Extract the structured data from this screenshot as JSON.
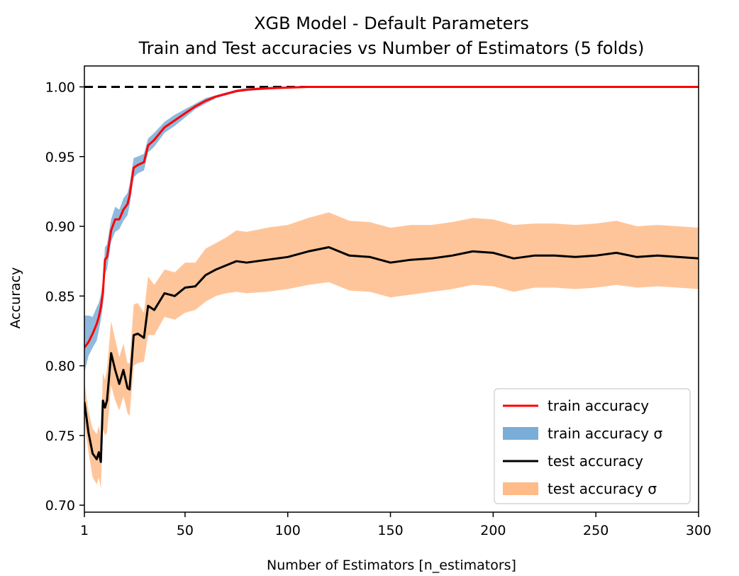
{
  "chart_data": {
    "type": "line",
    "title": [
      "XGB Model - Default Parameters",
      "Train and Test accuracies vs Number of Estimators (5 folds)"
    ],
    "xlabel": "Number of Estimators [n_estimators]",
    "ylabel": "Accuracy",
    "xlim": [
      1,
      300
    ],
    "ylim": [
      0.695,
      1.015
    ],
    "xticks": [
      1,
      50,
      100,
      150,
      200,
      250,
      300
    ],
    "yticks": [
      0.7,
      0.75,
      0.8,
      0.85,
      0.9,
      0.95,
      1.0
    ],
    "ytick_labels": [
      "0.70",
      "0.75",
      "0.80",
      "0.85",
      "0.90",
      "0.95",
      "1.00"
    ],
    "grid": false,
    "legend_position": "lower-right",
    "reference_line": {
      "y": 1.0,
      "style": "dashed",
      "color": "#000000"
    },
    "x": [
      1,
      3,
      5,
      7,
      8,
      9,
      10,
      11,
      12,
      14,
      16,
      18,
      20,
      22,
      23,
      25,
      27,
      30,
      32,
      35,
      40,
      45,
      50,
      55,
      60,
      65,
      70,
      75,
      80,
      90,
      100,
      110,
      120,
      130,
      140,
      150,
      160,
      170,
      180,
      190,
      200,
      210,
      220,
      230,
      240,
      250,
      260,
      270,
      280,
      290,
      300
    ],
    "series": [
      {
        "name": "train accuracy",
        "color": "#ff0000",
        "values": [
          0.813,
          0.817,
          0.823,
          0.83,
          0.835,
          0.842,
          0.852,
          0.876,
          0.878,
          0.897,
          0.905,
          0.905,
          0.912,
          0.916,
          0.922,
          0.942,
          0.944,
          0.946,
          0.958,
          0.962,
          0.971,
          0.976,
          0.981,
          0.986,
          0.99,
          0.993,
          0.995,
          0.997,
          0.998,
          0.999,
          0.9995,
          1.0,
          1.0,
          1.0,
          1.0,
          1.0,
          1.0,
          1.0,
          1.0,
          1.0,
          1.0,
          1.0,
          1.0,
          1.0,
          1.0,
          1.0,
          1.0,
          1.0,
          1.0,
          1.0,
          1.0
        ]
      },
      {
        "name": "train accuracy σ",
        "type": "band",
        "color": "#7aaed8",
        "lower": [
          0.795,
          0.807,
          0.813,
          0.818,
          0.825,
          0.833,
          0.843,
          0.866,
          0.869,
          0.889,
          0.896,
          0.898,
          0.904,
          0.908,
          0.915,
          0.935,
          0.938,
          0.94,
          0.953,
          0.957,
          0.967,
          0.972,
          0.978,
          0.984,
          0.988,
          0.992,
          0.994,
          0.996,
          0.997,
          0.998,
          0.999,
          0.9995,
          1.0,
          1.0,
          1.0,
          1.0,
          1.0,
          1.0,
          1.0,
          1.0,
          1.0,
          1.0,
          1.0,
          1.0,
          1.0,
          1.0,
          1.0,
          1.0,
          1.0,
          1.0,
          1.0
        ],
        "upper": [
          0.836,
          0.836,
          0.835,
          0.842,
          0.845,
          0.851,
          0.861,
          0.885,
          0.887,
          0.905,
          0.914,
          0.912,
          0.92,
          0.924,
          0.93,
          0.949,
          0.95,
          0.952,
          0.963,
          0.967,
          0.975,
          0.98,
          0.984,
          0.988,
          0.992,
          0.994,
          0.996,
          0.998,
          0.999,
          1.0,
          1.0,
          1.0,
          1.0,
          1.0,
          1.0,
          1.0,
          1.0,
          1.0,
          1.0,
          1.0,
          1.0,
          1.0,
          1.0,
          1.0,
          1.0,
          1.0,
          1.0,
          1.0,
          1.0,
          1.0,
          1.0
        ]
      },
      {
        "name": "test accuracy",
        "color": "#000000",
        "values": [
          0.774,
          0.752,
          0.737,
          0.733,
          0.738,
          0.731,
          0.775,
          0.77,
          0.775,
          0.809,
          0.797,
          0.787,
          0.797,
          0.784,
          0.783,
          0.822,
          0.823,
          0.82,
          0.843,
          0.84,
          0.852,
          0.85,
          0.856,
          0.857,
          0.865,
          0.869,
          0.872,
          0.875,
          0.874,
          0.876,
          0.878,
          0.882,
          0.885,
          0.879,
          0.878,
          0.874,
          0.876,
          0.877,
          0.879,
          0.882,
          0.881,
          0.877,
          0.879,
          0.879,
          0.878,
          0.879,
          0.881,
          0.878,
          0.879,
          0.878,
          0.877
        ]
      },
      {
        "name": "test accuracy σ",
        "type": "band",
        "color": "#ffbb88",
        "lower": [
          0.76,
          0.738,
          0.72,
          0.715,
          0.72,
          0.712,
          0.755,
          0.75,
          0.752,
          0.786,
          0.775,
          0.768,
          0.778,
          0.766,
          0.764,
          0.8,
          0.802,
          0.803,
          0.822,
          0.822,
          0.835,
          0.833,
          0.838,
          0.84,
          0.846,
          0.85,
          0.852,
          0.853,
          0.852,
          0.853,
          0.855,
          0.858,
          0.86,
          0.854,
          0.853,
          0.849,
          0.851,
          0.853,
          0.855,
          0.858,
          0.857,
          0.853,
          0.856,
          0.856,
          0.855,
          0.856,
          0.858,
          0.856,
          0.857,
          0.856,
          0.855
        ],
        "upper": [
          0.788,
          0.767,
          0.755,
          0.751,
          0.757,
          0.75,
          0.795,
          0.79,
          0.798,
          0.832,
          0.819,
          0.806,
          0.816,
          0.802,
          0.802,
          0.844,
          0.845,
          0.838,
          0.864,
          0.858,
          0.869,
          0.867,
          0.874,
          0.874,
          0.884,
          0.888,
          0.892,
          0.897,
          0.896,
          0.899,
          0.901,
          0.906,
          0.91,
          0.904,
          0.903,
          0.899,
          0.901,
          0.901,
          0.903,
          0.906,
          0.905,
          0.901,
          0.902,
          0.902,
          0.901,
          0.902,
          0.904,
          0.9,
          0.901,
          0.9,
          0.899
        ]
      }
    ],
    "legend": [
      {
        "label": "train accuracy",
        "kind": "line",
        "color": "#ff0000"
      },
      {
        "label": "train accuracy σ",
        "kind": "patch",
        "color": "#7aaed8"
      },
      {
        "label": "test accuracy",
        "kind": "line",
        "color": "#000000"
      },
      {
        "label": "test accuracy σ",
        "kind": "patch",
        "color": "#ffbb88"
      }
    ]
  }
}
